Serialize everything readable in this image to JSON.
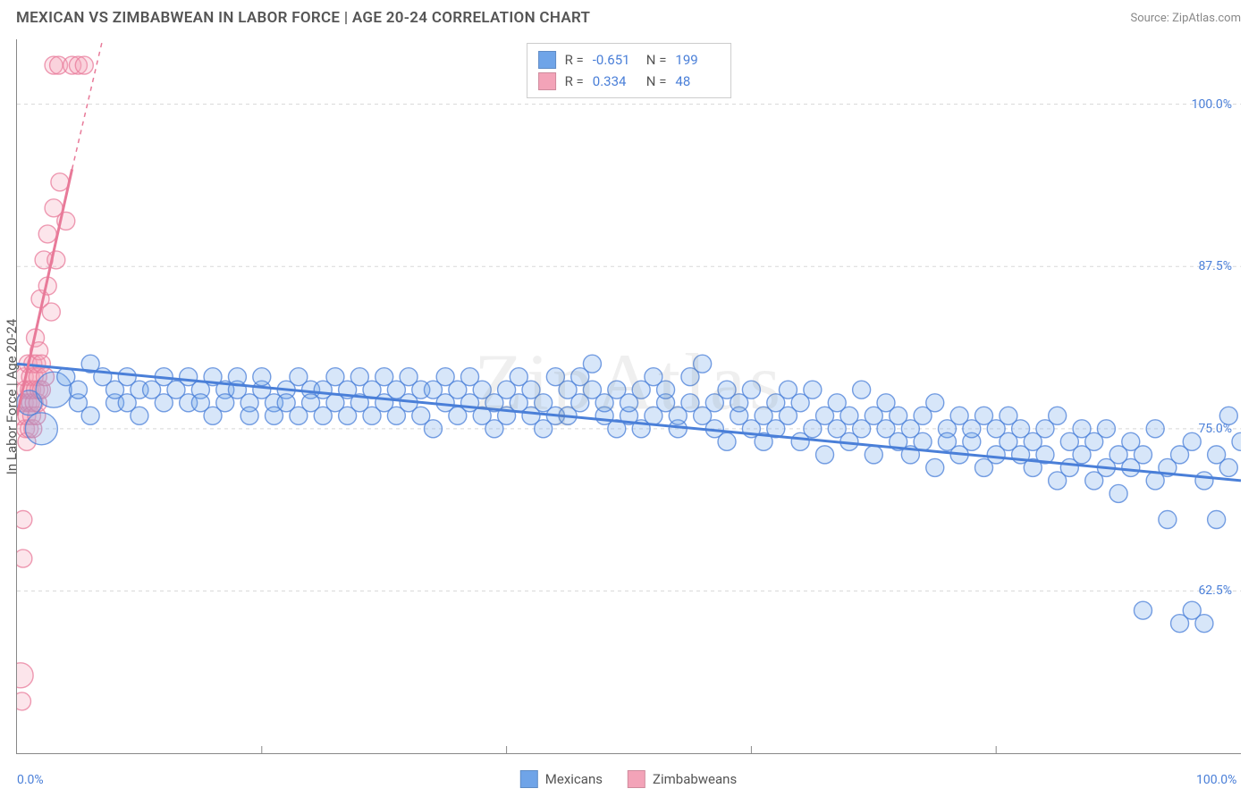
{
  "header": {
    "title": "MEXICAN VS ZIMBABWEAN IN LABOR FORCE | AGE 20-24 CORRELATION CHART",
    "source_prefix": "Source: ",
    "source_name": "ZipAtlas.com"
  },
  "watermark": "ZipAtlas",
  "chart": {
    "type": "scatter",
    "background_color": "#ffffff",
    "border_color": "#888888",
    "grid_color": "#d8d8d8",
    "grid_dash": "4 4",
    "ylabel": "In Labor Force | Age 20-24",
    "label_fontsize": 15,
    "label_color": "#555555",
    "xlim": [
      0,
      100
    ],
    "ylim": [
      50,
      105
    ],
    "x_ticks_minor": [
      20,
      40,
      60,
      80
    ],
    "x_tick_labels": [
      {
        "x": 0,
        "label": "0.0%"
      },
      {
        "x": 100,
        "label": "100.0%"
      }
    ],
    "y_tick_labels": [
      {
        "y": 62.5,
        "label": "62.5%"
      },
      {
        "y": 75.0,
        "label": "75.0%"
      },
      {
        "y": 87.5,
        "label": "87.5%"
      },
      {
        "y": 100.0,
        "label": "100.0%"
      }
    ],
    "tick_color": "#4a7fd8",
    "tick_fontsize": 14,
    "marker_radius": 10,
    "marker_radius_large": 16,
    "marker_fill_opacity": 0.28,
    "marker_stroke_opacity": 0.75,
    "marker_stroke_width": 1.4,
    "trend_line_width": 3,
    "trend_dash_width": 1.5
  },
  "series": {
    "mexicans": {
      "label": "Mexicans",
      "color": "#6fa4e8",
      "stroke": "#4a7fd8",
      "r": -0.651,
      "n": 199,
      "trend": {
        "x1": 0,
        "y1": 80,
        "x2": 100,
        "y2": 71
      },
      "points": [
        [
          1,
          77,
          14
        ],
        [
          2,
          75,
          18
        ],
        [
          3,
          78,
          20
        ],
        [
          4,
          79
        ],
        [
          5,
          77
        ],
        [
          5,
          78
        ],
        [
          6,
          76
        ],
        [
          6,
          80
        ],
        [
          7,
          79
        ],
        [
          8,
          77
        ],
        [
          8,
          78
        ],
        [
          9,
          77
        ],
        [
          9,
          79
        ],
        [
          10,
          78
        ],
        [
          10,
          76
        ],
        [
          11,
          78
        ],
        [
          12,
          79
        ],
        [
          12,
          77
        ],
        [
          13,
          78
        ],
        [
          14,
          77
        ],
        [
          14,
          79
        ],
        [
          15,
          78
        ],
        [
          15,
          77
        ],
        [
          16,
          79
        ],
        [
          16,
          76
        ],
        [
          17,
          78
        ],
        [
          17,
          77
        ],
        [
          18,
          78
        ],
        [
          18,
          79
        ],
        [
          19,
          77
        ],
        [
          19,
          76
        ],
        [
          20,
          78
        ],
        [
          20,
          79
        ],
        [
          21,
          77
        ],
        [
          21,
          76
        ],
        [
          22,
          78
        ],
        [
          22,
          77
        ],
        [
          23,
          79
        ],
        [
          23,
          76
        ],
        [
          24,
          78
        ],
        [
          24,
          77
        ],
        [
          25,
          76
        ],
        [
          25,
          78
        ],
        [
          26,
          79
        ],
        [
          26,
          77
        ],
        [
          27,
          78
        ],
        [
          27,
          76
        ],
        [
          28,
          77
        ],
        [
          28,
          79
        ],
        [
          29,
          76
        ],
        [
          29,
          78
        ],
        [
          30,
          77
        ],
        [
          30,
          79
        ],
        [
          31,
          76
        ],
        [
          31,
          78
        ],
        [
          32,
          79
        ],
        [
          32,
          77
        ],
        [
          33,
          76
        ],
        [
          33,
          78
        ],
        [
          34,
          75
        ],
        [
          34,
          78
        ],
        [
          35,
          77
        ],
        [
          35,
          79
        ],
        [
          36,
          76
        ],
        [
          36,
          78
        ],
        [
          37,
          77
        ],
        [
          37,
          79
        ],
        [
          38,
          76
        ],
        [
          38,
          78
        ],
        [
          39,
          75
        ],
        [
          39,
          77
        ],
        [
          40,
          78
        ],
        [
          40,
          76
        ],
        [
          41,
          79
        ],
        [
          41,
          77
        ],
        [
          42,
          76
        ],
        [
          42,
          78
        ],
        [
          43,
          77
        ],
        [
          43,
          75
        ],
        [
          44,
          76
        ],
        [
          44,
          79
        ],
        [
          45,
          78
        ],
        [
          45,
          76
        ],
        [
          46,
          77
        ],
        [
          46,
          79
        ],
        [
          47,
          78
        ],
        [
          47,
          80
        ],
        [
          48,
          76
        ],
        [
          48,
          77
        ],
        [
          49,
          75
        ],
        [
          49,
          78
        ],
        [
          50,
          76
        ],
        [
          50,
          77
        ],
        [
          51,
          78
        ],
        [
          51,
          75
        ],
        [
          52,
          76
        ],
        [
          52,
          79
        ],
        [
          53,
          77
        ],
        [
          53,
          78
        ],
        [
          54,
          75
        ],
        [
          54,
          76
        ],
        [
          55,
          77
        ],
        [
          55,
          79
        ],
        [
          56,
          80
        ],
        [
          56,
          76
        ],
        [
          57,
          77
        ],
        [
          57,
          75
        ],
        [
          58,
          78
        ],
        [
          58,
          74
        ],
        [
          59,
          76
        ],
        [
          59,
          77
        ],
        [
          60,
          75
        ],
        [
          60,
          78
        ],
        [
          61,
          76
        ],
        [
          61,
          74
        ],
        [
          62,
          77
        ],
        [
          62,
          75
        ],
        [
          63,
          78
        ],
        [
          63,
          76
        ],
        [
          64,
          77
        ],
        [
          64,
          74
        ],
        [
          65,
          75
        ],
        [
          65,
          78
        ],
        [
          66,
          76
        ],
        [
          66,
          73
        ],
        [
          67,
          77
        ],
        [
          67,
          75
        ],
        [
          68,
          76
        ],
        [
          68,
          74
        ],
        [
          69,
          75
        ],
        [
          69,
          78
        ],
        [
          70,
          73
        ],
        [
          70,
          76
        ],
        [
          71,
          75
        ],
        [
          71,
          77
        ],
        [
          72,
          74
        ],
        [
          72,
          76
        ],
        [
          73,
          75
        ],
        [
          73,
          73
        ],
        [
          74,
          76
        ],
        [
          74,
          74
        ],
        [
          75,
          77
        ],
        [
          75,
          72
        ],
        [
          76,
          75
        ],
        [
          76,
          74
        ],
        [
          77,
          73
        ],
        [
          77,
          76
        ],
        [
          78,
          74
        ],
        [
          78,
          75
        ],
        [
          79,
          72
        ],
        [
          79,
          76
        ],
        [
          80,
          75
        ],
        [
          80,
          73
        ],
        [
          81,
          74
        ],
        [
          81,
          76
        ],
        [
          82,
          73
        ],
        [
          82,
          75
        ],
        [
          83,
          74
        ],
        [
          83,
          72
        ],
        [
          84,
          75
        ],
        [
          84,
          73
        ],
        [
          85,
          76
        ],
        [
          85,
          71
        ],
        [
          86,
          74
        ],
        [
          86,
          72
        ],
        [
          87,
          75
        ],
        [
          87,
          73
        ],
        [
          88,
          71
        ],
        [
          88,
          74
        ],
        [
          89,
          72
        ],
        [
          89,
          75
        ],
        [
          90,
          73
        ],
        [
          90,
          70
        ],
        [
          91,
          74
        ],
        [
          91,
          72
        ],
        [
          92,
          61
        ],
        [
          92,
          73
        ],
        [
          93,
          71
        ],
        [
          93,
          75
        ],
        [
          94,
          68
        ],
        [
          94,
          72
        ],
        [
          95,
          60
        ],
        [
          95,
          73
        ],
        [
          96,
          61
        ],
        [
          96,
          74
        ],
        [
          97,
          60
        ],
        [
          97,
          71
        ],
        [
          98,
          68
        ],
        [
          98,
          73
        ],
        [
          99,
          72
        ],
        [
          99,
          76
        ],
        [
          100,
          74
        ]
      ]
    },
    "zimbabweans": {
      "label": "Zimbabweans",
      "color": "#f3a3b8",
      "stroke": "#e87a99",
      "r": 0.334,
      "n": 48,
      "trend_solid": {
        "x1": 0,
        "y1": 76,
        "x2": 4.5,
        "y2": 95
      },
      "trend_dash": {
        "x1": 4.5,
        "y1": 95,
        "x2": 7,
        "y2": 105
      },
      "points": [
        [
          0.3,
          76
        ],
        [
          0.3,
          56,
          14
        ],
        [
          0.4,
          54
        ],
        [
          0.5,
          68
        ],
        [
          0.5,
          65
        ],
        [
          0.6,
          77
        ],
        [
          0.6,
          79
        ],
        [
          0.7,
          75
        ],
        [
          0.7,
          78
        ],
        [
          0.8,
          76
        ],
        [
          0.8,
          74
        ],
        [
          0.9,
          77
        ],
        [
          0.9,
          80
        ],
        [
          1.0,
          78
        ],
        [
          1.0,
          75
        ],
        [
          1.1,
          79
        ],
        [
          1.1,
          77
        ],
        [
          1.2,
          76
        ],
        [
          1.2,
          78
        ],
        [
          1.3,
          80
        ],
        [
          1.3,
          75
        ],
        [
          1.4,
          77
        ],
        [
          1.4,
          79
        ],
        [
          1.5,
          78
        ],
        [
          1.5,
          82
        ],
        [
          1.6,
          76
        ],
        [
          1.6,
          80
        ],
        [
          1.7,
          79
        ],
        [
          1.7,
          77
        ],
        [
          1.8,
          81
        ],
        [
          1.8,
          78
        ],
        [
          1.9,
          85
        ],
        [
          2.0,
          80
        ],
        [
          2.0,
          78
        ],
        [
          2.2,
          88
        ],
        [
          2.3,
          79
        ],
        [
          2.5,
          86
        ],
        [
          2.5,
          90
        ],
        [
          2.8,
          84
        ],
        [
          3.0,
          92
        ],
        [
          3.0,
          103
        ],
        [
          3.2,
          88
        ],
        [
          3.4,
          103
        ],
        [
          3.5,
          94
        ],
        [
          4.0,
          91
        ],
        [
          4.5,
          103
        ],
        [
          5.0,
          103
        ],
        [
          5.5,
          103
        ]
      ]
    }
  },
  "stats_box": {
    "r_label": "R =",
    "n_label": "N ="
  },
  "legend": {
    "items": [
      "mexicans",
      "zimbabweans"
    ]
  }
}
